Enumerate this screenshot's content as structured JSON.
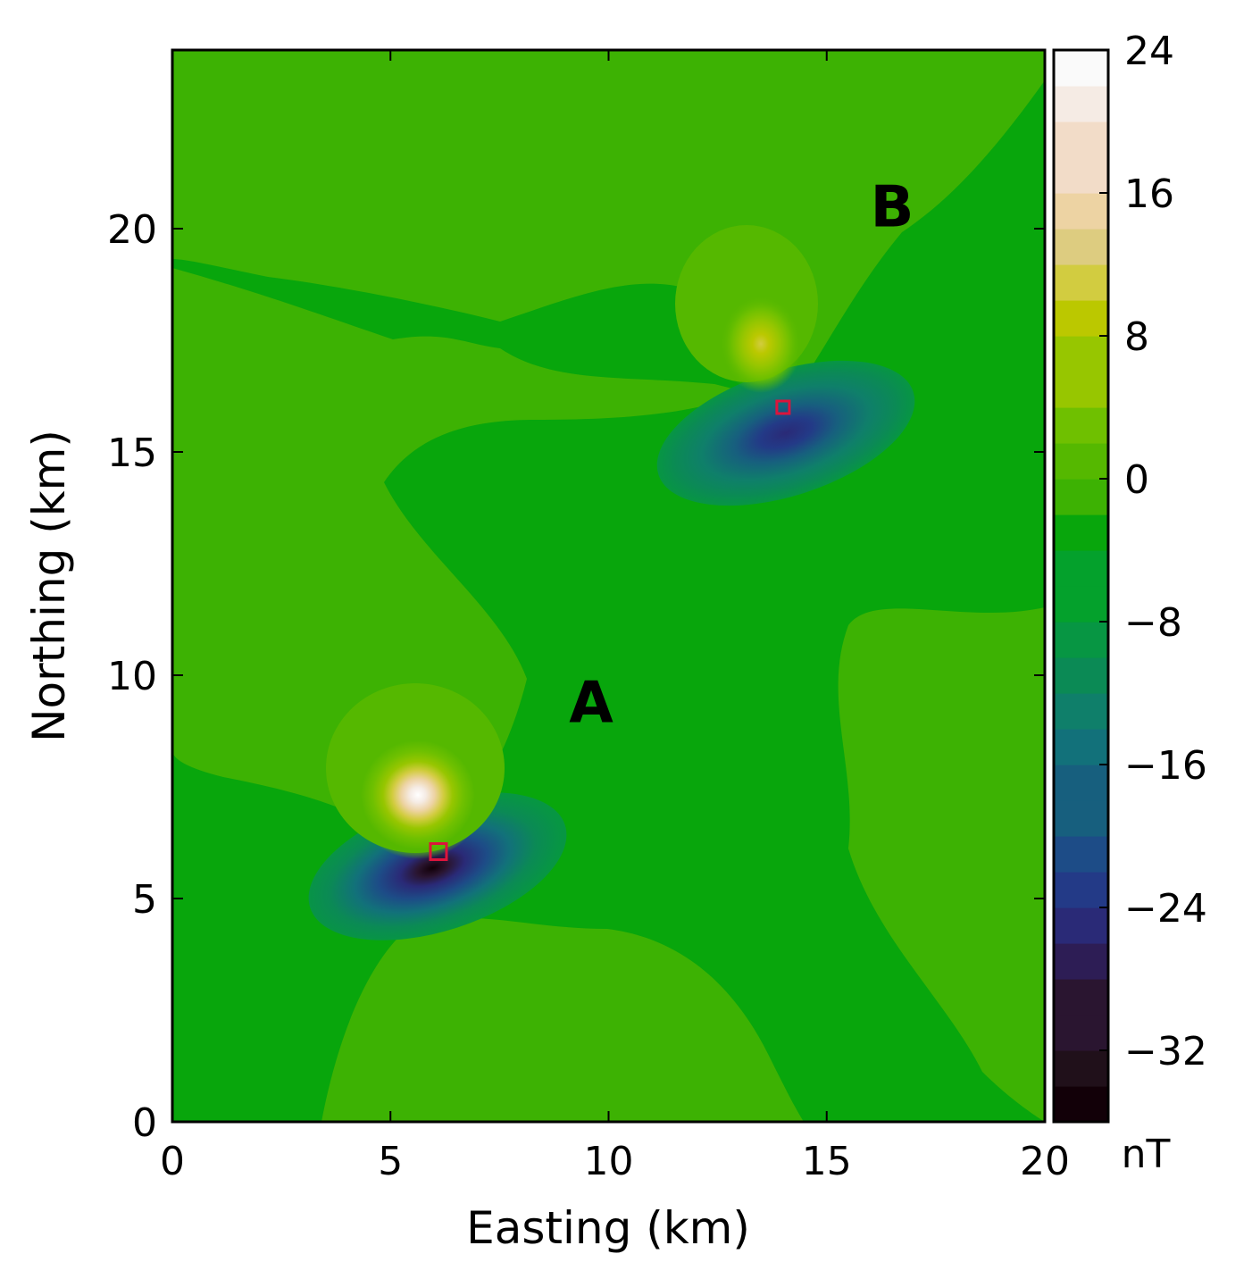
{
  "chart_data": {
    "type": "heatmap",
    "xlabel": "Easting (km)",
    "ylabel": "Northing (km)",
    "xlim": [
      0,
      20
    ],
    "ylim": [
      0,
      24
    ],
    "xticks": [
      0,
      5,
      10,
      15,
      20
    ],
    "yticks": [
      0,
      5,
      10,
      15,
      20
    ],
    "colorbar": {
      "unit_label": "nT",
      "range": [
        -36,
        24
      ],
      "levels_step": 2,
      "ticks": [
        24,
        16,
        8,
        0,
        -8,
        -16,
        -24,
        -32
      ],
      "tick_labels": [
        "24",
        "16",
        "8",
        "0",
        "−8",
        "−16",
        "−24",
        "−32"
      ],
      "palette": [
        "#120008",
        "#20101a",
        "#2a1530",
        "#2d1d55",
        "#2a2a77",
        "#233a87",
        "#1d4c87",
        "#175f7e",
        "#12717a",
        "#0f7f6a",
        "#0b8a55",
        "#079643",
        "#04a12c",
        "#08a60c",
        "#3db203",
        "#55b800",
        "#6fc000",
        "#97c600",
        "#bbc800",
        "#d2cc40",
        "#ddcc80",
        "#edd3a3",
        "#f2dcc8",
        "#f5ebe4",
        "#fafafa"
      ]
    },
    "annotations": [
      {
        "text": "A",
        "x": 9.6,
        "y": 9.3
      },
      {
        "text": "B",
        "x": 16.5,
        "y": 20.4
      }
    ],
    "markers": [
      {
        "shape": "square",
        "x": 6.1,
        "y": 6.05,
        "color": "#dc143c"
      },
      {
        "shape": "square",
        "x": 14.0,
        "y": 16.0,
        "color": "#dc143c"
      }
    ],
    "sources": [
      {
        "name": "A",
        "x": 6.0,
        "y": 6.5,
        "positive_peak": 24,
        "negative_peak": -36
      },
      {
        "name": "B",
        "x": 14.0,
        "y": 16.3,
        "positive_peak": 12,
        "negative_peak": -26
      }
    ],
    "grid": false,
    "colors": {
      "background_field": "#08a60c",
      "positive_lobe": "#3db203",
      "marker": "#dc143c"
    }
  }
}
